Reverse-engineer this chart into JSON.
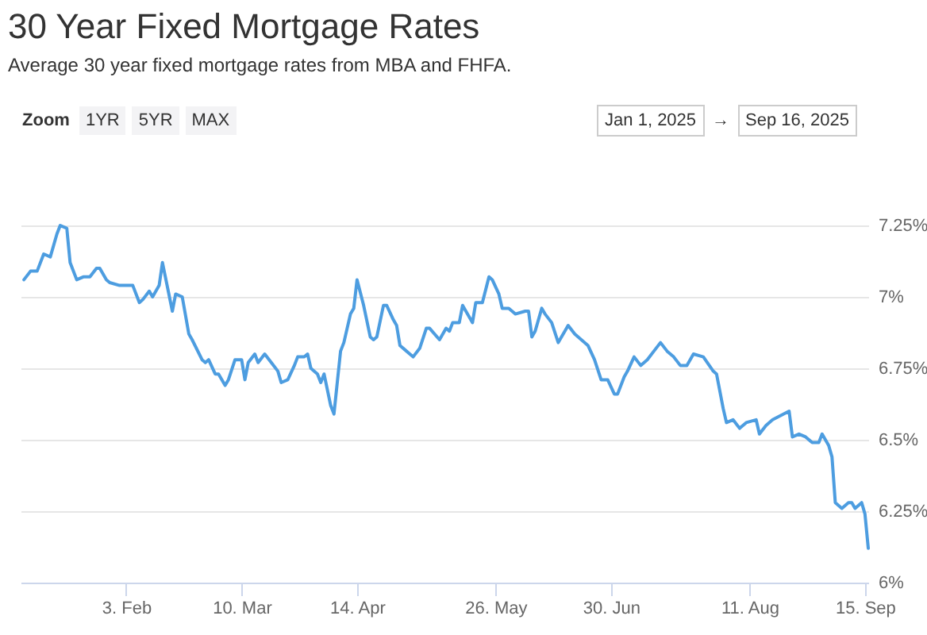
{
  "chart_data": {
    "type": "line",
    "title": "30 Year Fixed Mortgage Rates",
    "subtitle": "Average 30 year fixed mortgage rates from MBA and FHFA.",
    "annotations": [
      "Zoom",
      "1YR",
      "5YR",
      "MAX",
      "Jan 1, 2025",
      "→",
      "Sep 16, 2025"
    ],
    "x": [
      "2025-01-03",
      "2025-01-05",
      "2025-01-07",
      "2025-01-09",
      "2025-01-11",
      "2025-01-13",
      "2025-01-14",
      "2025-01-16",
      "2025-01-17",
      "2025-01-19",
      "2025-01-21",
      "2025-01-23",
      "2025-01-25",
      "2025-01-26",
      "2025-01-28",
      "2025-01-29",
      "2025-02-01",
      "2025-02-05",
      "2025-02-07",
      "2025-02-08",
      "2025-02-10",
      "2025-02-11",
      "2025-02-13",
      "2025-02-14",
      "2025-02-17",
      "2025-02-18",
      "2025-02-20",
      "2025-02-22",
      "2025-02-23",
      "2025-02-26",
      "2025-02-27",
      "2025-02-28",
      "2025-03-02",
      "2025-03-03",
      "2025-03-05",
      "2025-03-06",
      "2025-03-08",
      "2025-03-10",
      "2025-03-11",
      "2025-03-12",
      "2025-03-14",
      "2025-03-15",
      "2025-03-17",
      "2025-03-19",
      "2025-03-21",
      "2025-03-22",
      "2025-03-24",
      "2025-03-26",
      "2025-03-27",
      "2025-03-29",
      "2025-03-30",
      "2025-03-31",
      "2025-04-02",
      "2025-04-03",
      "2025-04-04",
      "2025-04-06",
      "2025-04-07",
      "2025-04-09",
      "2025-04-10",
      "2025-04-12",
      "2025-04-13",
      "2025-04-14",
      "2025-04-16",
      "2025-04-18",
      "2025-04-19",
      "2025-04-20",
      "2025-04-22",
      "2025-04-23",
      "2025-04-25",
      "2025-04-26",
      "2025-04-27",
      "2025-04-30",
      "2025-05-01",
      "2025-05-03",
      "2025-05-05",
      "2025-05-06",
      "2025-05-09",
      "2025-05-11",
      "2025-05-12",
      "2025-05-13",
      "2025-05-15",
      "2025-05-16",
      "2025-05-18",
      "2025-05-19",
      "2025-05-20",
      "2025-05-22",
      "2025-05-24",
      "2025-05-25",
      "2025-05-27",
      "2025-05-28",
      "2025-05-30",
      "2025-05-31",
      "2025-06-01",
      "2025-06-04",
      "2025-06-05",
      "2025-06-06",
      "2025-06-07",
      "2025-06-09",
      "2025-06-10",
      "2025-06-12",
      "2025-06-14",
      "2025-06-16",
      "2025-06-17",
      "2025-06-19",
      "2025-06-21",
      "2025-06-23",
      "2025-06-25",
      "2025-06-27",
      "2025-06-29",
      "2025-07-01",
      "2025-07-02",
      "2025-07-04",
      "2025-07-05",
      "2025-07-07",
      "2025-07-09",
      "2025-07-11",
      "2025-07-13",
      "2025-07-15",
      "2025-07-17",
      "2025-07-19",
      "2025-07-21",
      "2025-07-23",
      "2025-07-25",
      "2025-07-28",
      "2025-07-31",
      "2025-08-01",
      "2025-08-03",
      "2025-08-04",
      "2025-08-06",
      "2025-08-08",
      "2025-08-10",
      "2025-08-13",
      "2025-08-14",
      "2025-08-16",
      "2025-08-18",
      "2025-08-23",
      "2025-08-24",
      "2025-08-26",
      "2025-08-28",
      "2025-08-30",
      "2025-09-01",
      "2025-09-02",
      "2025-09-04",
      "2025-09-05",
      "2025-09-06",
      "2025-09-08",
      "2025-09-10",
      "2025-09-11",
      "2025-09-12",
      "2025-09-14",
      "2025-09-15",
      "2025-09-16"
    ],
    "series": [
      {
        "color": "#4d9de0",
        "values": [
          7.06,
          7.09,
          7.09,
          7.15,
          7.14,
          7.22,
          7.25,
          7.24,
          7.12,
          7.06,
          7.07,
          7.07,
          7.1,
          7.1,
          7.06,
          7.05,
          7.04,
          7.04,
          6.98,
          6.99,
          7.02,
          7.0,
          7.04,
          7.12,
          6.95,
          7.01,
          7.0,
          6.87,
          6.85,
          6.78,
          6.77,
          6.78,
          6.73,
          6.73,
          6.69,
          6.71,
          6.78,
          6.78,
          6.71,
          6.77,
          6.8,
          6.77,
          6.8,
          6.77,
          6.74,
          6.7,
          6.71,
          6.76,
          6.79,
          6.79,
          6.8,
          6.75,
          6.73,
          6.7,
          6.73,
          6.62,
          6.59,
          6.81,
          6.84,
          6.94,
          6.96,
          7.06,
          6.97,
          6.86,
          6.85,
          6.86,
          6.97,
          6.97,
          6.92,
          6.9,
          6.83,
          6.8,
          6.79,
          6.82,
          6.89,
          6.89,
          6.85,
          6.89,
          6.88,
          6.91,
          6.91,
          6.97,
          6.93,
          6.91,
          6.98,
          6.98,
          7.07,
          7.06,
          7.01,
          6.96,
          6.96,
          6.95,
          6.94,
          6.95,
          6.95,
          6.86,
          6.88,
          6.96,
          6.94,
          6.91,
          6.84,
          6.88,
          6.9,
          6.87,
          6.85,
          6.83,
          6.78,
          6.71,
          6.71,
          6.66,
          6.66,
          6.72,
          6.74,
          6.79,
          6.76,
          6.78,
          6.81,
          6.84,
          6.81,
          6.79,
          6.76,
          6.76,
          6.8,
          6.79,
          6.74,
          6.73,
          6.61,
          6.56,
          6.57,
          6.54,
          6.56,
          6.57,
          6.52,
          6.55,
          6.57,
          6.6,
          6.51,
          6.52,
          6.51,
          6.49,
          6.49,
          6.52,
          6.48,
          6.44,
          6.28,
          6.26,
          6.28,
          6.28,
          6.26,
          6.28,
          6.24,
          6.12
        ]
      }
    ],
    "xlim": [
      "2025-01-02",
      "2025-09-16"
    ],
    "xticks": [
      {
        "value": "2025-02-03",
        "label": "3. Feb"
      },
      {
        "value": "2025-03-10",
        "label": "10. Mar"
      },
      {
        "value": "2025-04-14",
        "label": "14. Apr"
      },
      {
        "value": "2025-05-26",
        "label": "26. May"
      },
      {
        "value": "2025-06-30",
        "label": "30. Jun"
      },
      {
        "value": "2025-08-11",
        "label": "11. Aug"
      },
      {
        "value": "2025-09-15",
        "label": "15. Sep"
      }
    ],
    "ylim": [
      6,
      7.5
    ],
    "yticks": [
      {
        "value": 6,
        "label": "6%"
      },
      {
        "value": 6.25,
        "label": "6.25%"
      },
      {
        "value": 6.5,
        "label": "6.5%"
      },
      {
        "value": 6.75,
        "label": "6.75%"
      },
      {
        "value": 7,
        "label": "7%"
      },
      {
        "value": 7.25,
        "label": "7.25%"
      }
    ],
    "grid": "y"
  }
}
